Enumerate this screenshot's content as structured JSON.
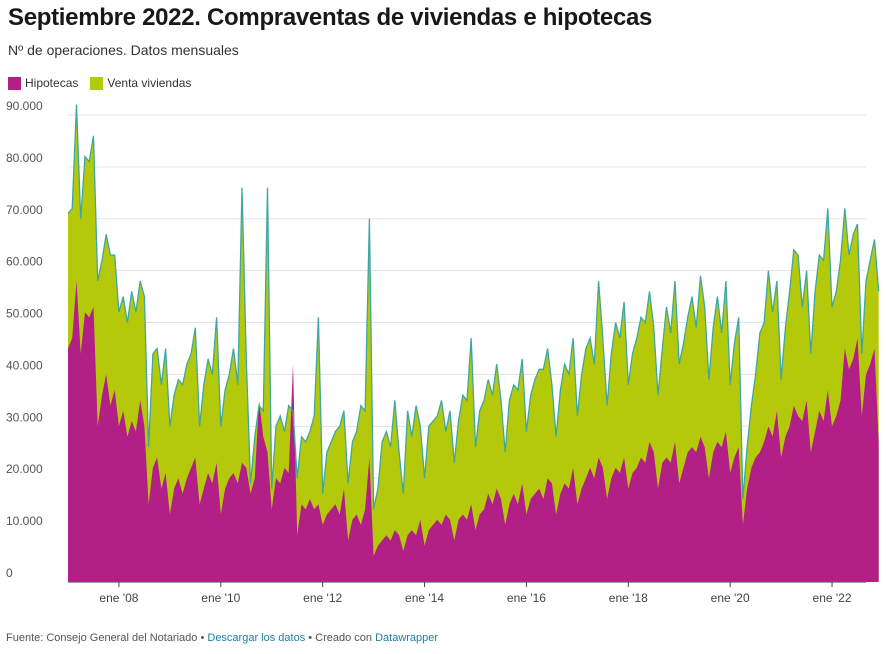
{
  "header": {
    "title": "Septiembre 2022. Compraventas de viviendas e hipotecas",
    "subtitle": "Nº de operaciones. Datos mensuales"
  },
  "legend": [
    {
      "label": "Hipotecas",
      "color": "#b21f86"
    },
    {
      "label": "Venta viviendas",
      "color": "#b5c90b"
    }
  ],
  "colors": {
    "hipotecas": "#b21f86",
    "ventas": "#b5c90b",
    "outline": "#3fa7a0"
  },
  "footer": {
    "prefix": "Fuente: Consejo General del Notariado",
    "sep1": " • ",
    "download_label": "Descargar los datos",
    "sep2": " • Creado con ",
    "tool_label": "Datawrapper"
  },
  "chart_data": {
    "type": "area",
    "x_start": "2007-01",
    "x_end": "2022-09",
    "x_tick_labels": [
      "ene '08",
      "ene '10",
      "ene '12",
      "ene '14",
      "ene '16",
      "ene '18",
      "ene '20",
      "ene '22"
    ],
    "x_tick_dates": [
      "2008-01",
      "2010-01",
      "2012-01",
      "2014-01",
      "2016-01",
      "2018-01",
      "2020-01",
      "2022-01"
    ],
    "y_ticks": [
      0,
      10000,
      20000,
      30000,
      40000,
      50000,
      60000,
      70000,
      80000,
      90000
    ],
    "y_tick_labels": [
      "0",
      "10.000",
      "20.000",
      "30.000",
      "40.000",
      "50.000",
      "60.000",
      "70.000",
      "80.000",
      "90.000"
    ],
    "ylim": [
      0,
      90000
    ],
    "grid": true,
    "legend_position": "top-left",
    "series": [
      {
        "name": "Hipotecas",
        "values": [
          45000,
          47000,
          58000,
          44000,
          52000,
          51000,
          53000,
          30000,
          36000,
          40000,
          34000,
          37000,
          30000,
          33000,
          28000,
          31000,
          29000,
          35000,
          30000,
          15000,
          22000,
          24000,
          18000,
          21000,
          13000,
          18000,
          20000,
          17000,
          20000,
          22000,
          24000,
          15000,
          18000,
          21000,
          19000,
          23000,
          13000,
          18000,
          20000,
          21000,
          19000,
          23000,
          22000,
          17000,
          20000,
          35000,
          28000,
          25000,
          14000,
          20000,
          19000,
          22000,
          21000,
          42000,
          9000,
          15000,
          14000,
          16000,
          14000,
          15000,
          11000,
          13000,
          14000,
          15000,
          13000,
          18000,
          8000,
          12000,
          13000,
          11000,
          14000,
          24000,
          5000,
          7000,
          8000,
          9000,
          8000,
          10000,
          9000,
          6000,
          9000,
          10000,
          9000,
          12000,
          7000,
          10000,
          11000,
          12000,
          11000,
          13000,
          12000,
          8000,
          12000,
          13000,
          12000,
          15000,
          10000,
          13000,
          14000,
          17000,
          15000,
          18000,
          16000,
          11000,
          15000,
          17000,
          15000,
          19000,
          13000,
          16000,
          17000,
          18000,
          16000,
          20000,
          19000,
          13000,
          17000,
          19000,
          18000,
          22000,
          15000,
          18000,
          20000,
          22000,
          20000,
          24000,
          22000,
          16000,
          20000,
          22000,
          21000,
          24000,
          18000,
          21000,
          22000,
          24000,
          23000,
          27000,
          25000,
          18000,
          23000,
          24000,
          23000,
          27000,
          19000,
          22000,
          25000,
          26000,
          25000,
          28000,
          26000,
          20000,
          25000,
          27000,
          26000,
          29000,
          21000,
          24000,
          26000,
          11000,
          18000,
          22000,
          24000,
          25000,
          27000,
          30000,
          28000,
          33000,
          24000,
          28000,
          30000,
          34000,
          32000,
          31000,
          35000,
          25000,
          29000,
          33000,
          31000,
          37000,
          30000,
          32000,
          35000,
          45000,
          41000,
          43000,
          47000,
          32000,
          40000,
          42000,
          45000,
          27000
        ]
      },
      {
        "name": "Venta viviendas",
        "values": [
          71000,
          72000,
          92000,
          70000,
          82000,
          81000,
          86000,
          58000,
          62000,
          67000,
          63000,
          63000,
          52000,
          55000,
          50000,
          56000,
          52000,
          58000,
          55000,
          26000,
          44000,
          45000,
          38000,
          45000,
          30000,
          36000,
          39000,
          38000,
          42000,
          44000,
          49000,
          30000,
          38000,
          43000,
          40000,
          51000,
          30000,
          37000,
          40000,
          45000,
          38000,
          76000,
          43000,
          19000,
          28000,
          34000,
          33000,
          76000,
          18000,
          30000,
          32000,
          29000,
          34000,
          33000,
          20000,
          28000,
          27000,
          29000,
          32000,
          51000,
          17000,
          25000,
          27000,
          29000,
          30000,
          33000,
          19000,
          27000,
          29000,
          34000,
          33000,
          70000,
          14000,
          18000,
          27000,
          29000,
          26000,
          35000,
          25000,
          17000,
          33000,
          28000,
          34000,
          30000,
          20000,
          30000,
          31000,
          32000,
          35000,
          29000,
          33000,
          23000,
          31000,
          36000,
          35000,
          47000,
          26000,
          33000,
          35000,
          39000,
          36000,
          42000,
          35000,
          25000,
          35000,
          38000,
          37000,
          43000,
          29000,
          36000,
          39000,
          41000,
          41000,
          45000,
          38000,
          28000,
          37000,
          42000,
          40000,
          47000,
          32000,
          40000,
          45000,
          47000,
          42000,
          58000,
          47000,
          34000,
          44000,
          50000,
          47000,
          54000,
          38000,
          44000,
          47000,
          51000,
          50000,
          56000,
          49000,
          36000,
          45000,
          53000,
          48000,
          58000,
          42000,
          46000,
          51000,
          55000,
          49000,
          59000,
          53000,
          39000,
          49000,
          55000,
          48000,
          58000,
          38000,
          46000,
          51000,
          16000,
          26000,
          34000,
          40000,
          48000,
          50000,
          60000,
          52000,
          58000,
          39000,
          49000,
          56000,
          64000,
          63000,
          53000,
          60000,
          44000,
          56000,
          63000,
          62000,
          72000,
          53000,
          56000,
          62000,
          72000,
          63000,
          67000,
          69000,
          44000,
          58000,
          62000,
          66000,
          56000
        ]
      }
    ]
  }
}
